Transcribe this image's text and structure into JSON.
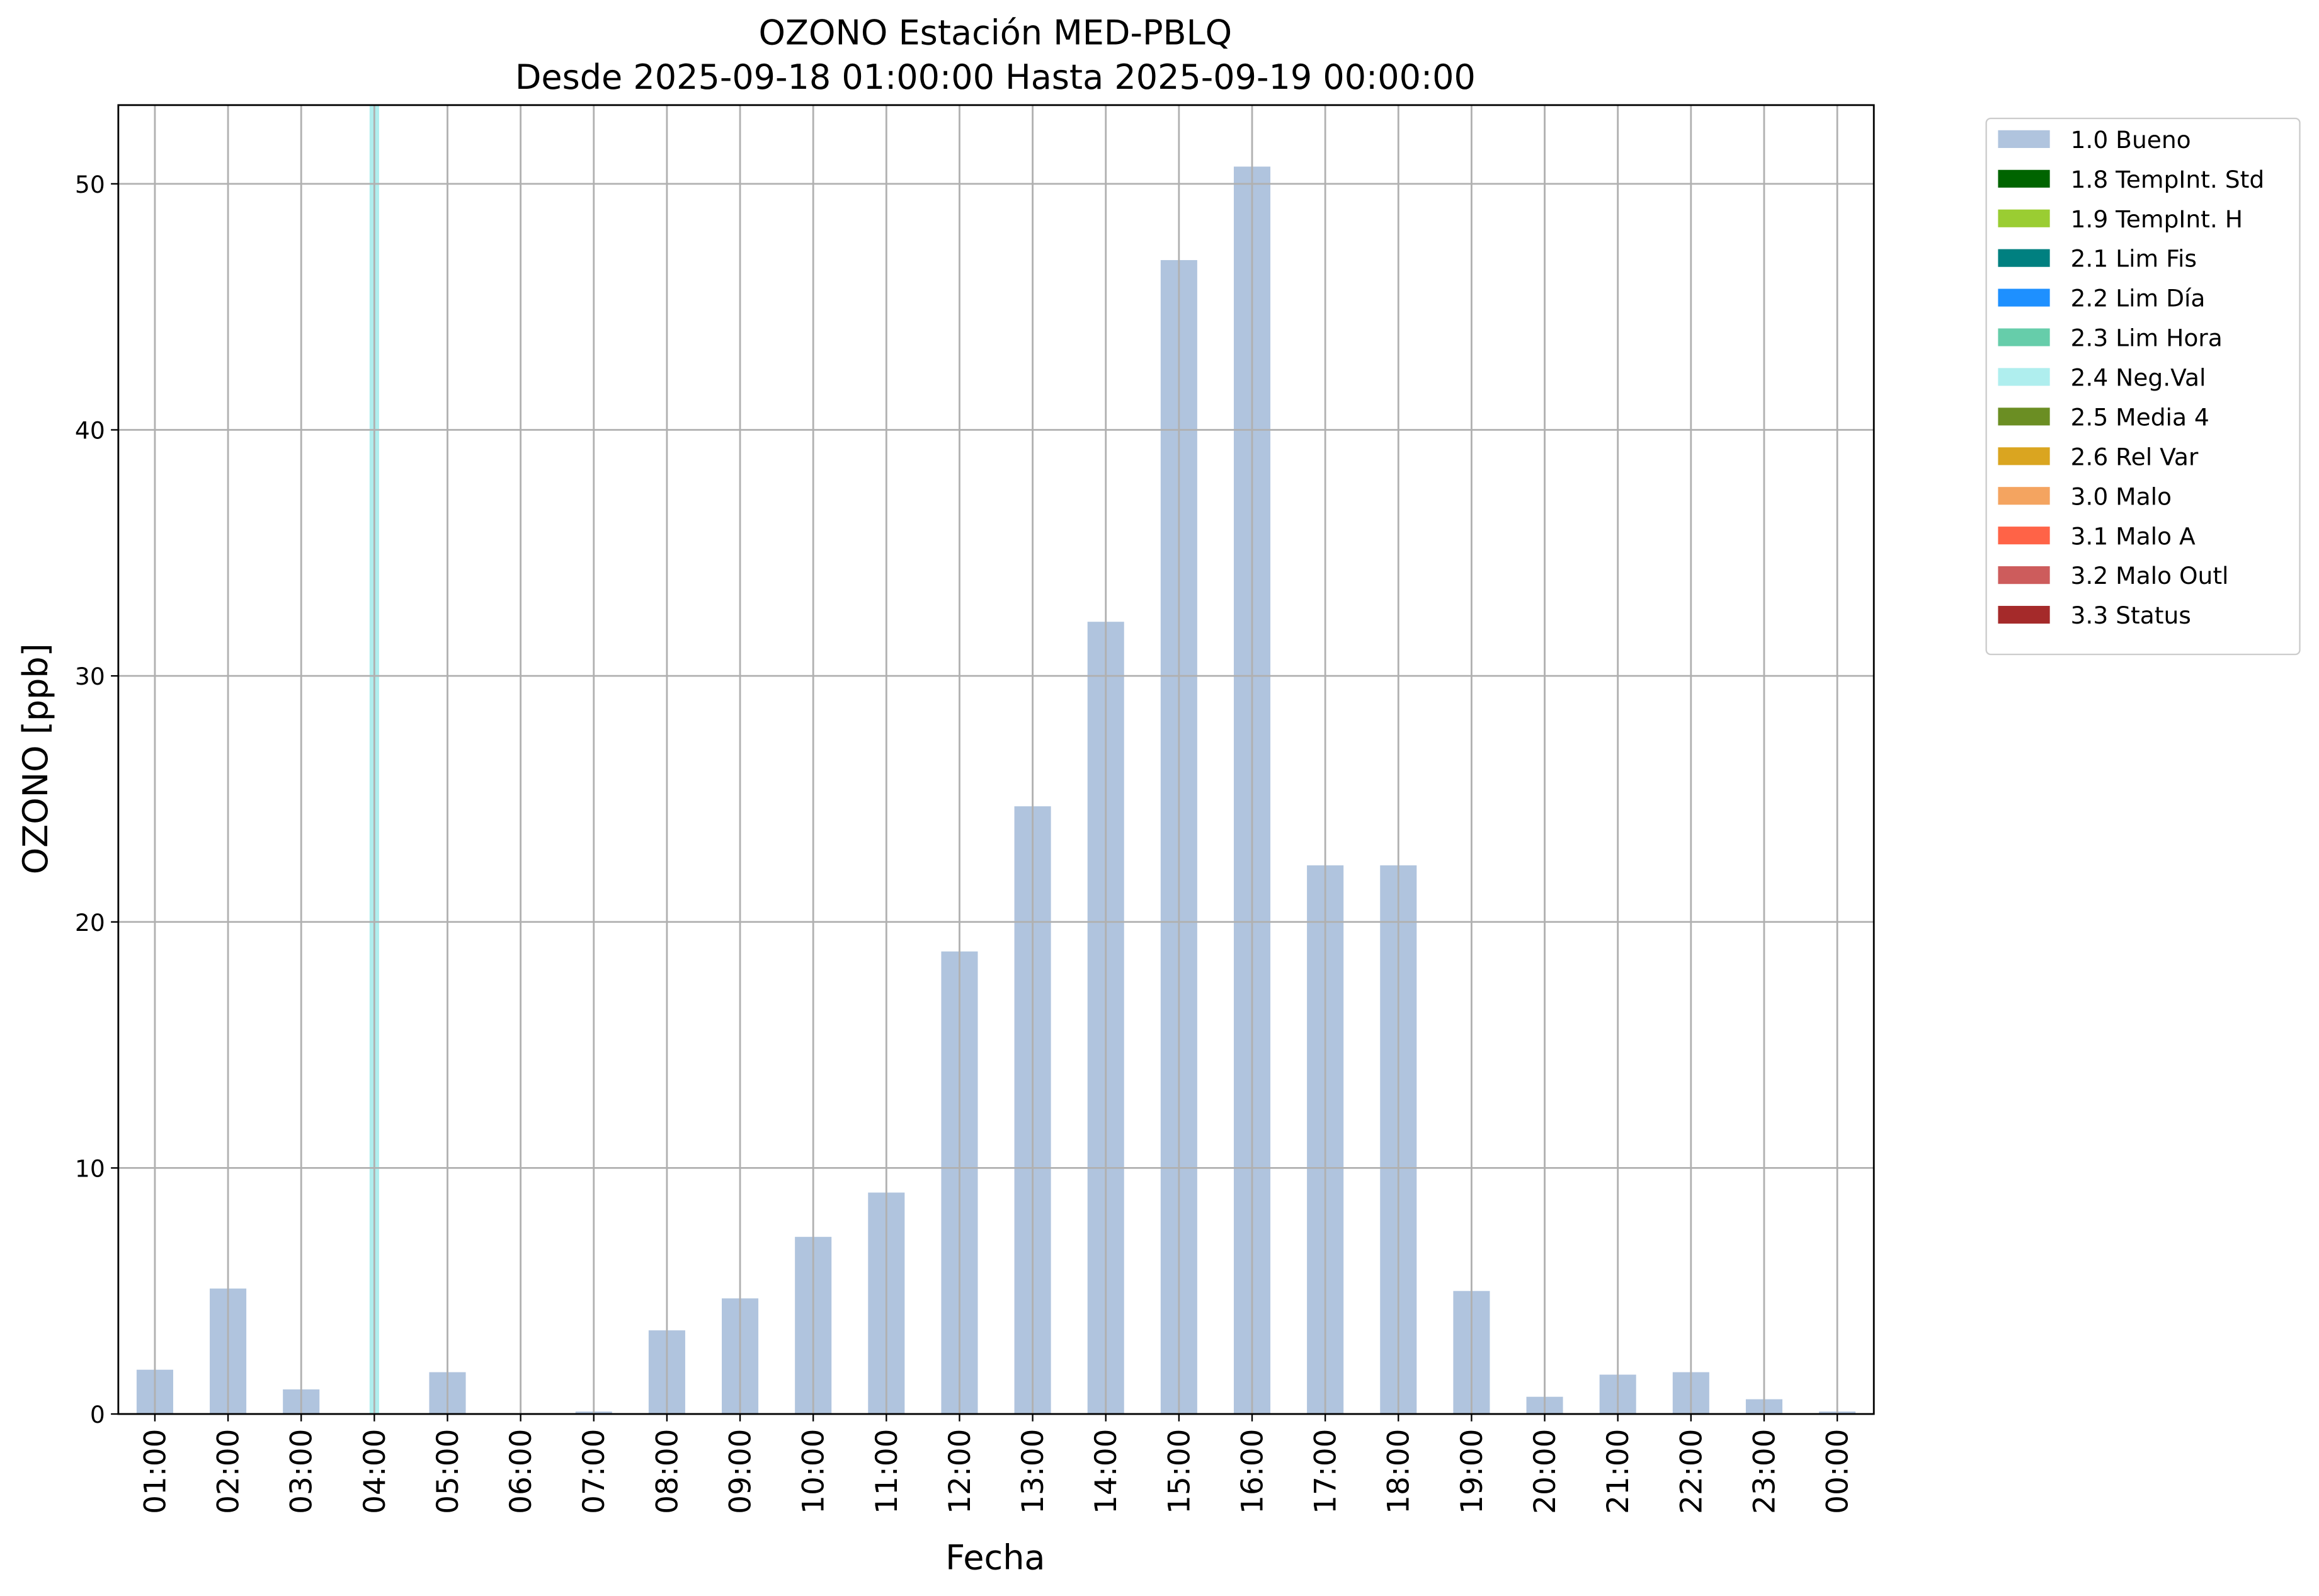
{
  "chart_data": {
    "type": "bar",
    "title": "OZONO Estación MED-PBLQ",
    "subtitle": "Desde 2025-09-18 01:00:00 Hasta 2025-09-19 00:00:00",
    "x_label": "Fecha",
    "y_label": "OZONO [ppb]",
    "categories": [
      "01:00",
      "02:00",
      "03:00",
      "04:00",
      "05:00",
      "06:00",
      "07:00",
      "08:00",
      "09:00",
      "10:00",
      "11:00",
      "12:00",
      "13:00",
      "14:00",
      "15:00",
      "16:00",
      "17:00",
      "18:00",
      "19:00",
      "20:00",
      "21:00",
      "22:00",
      "23:00",
      "00:00"
    ],
    "series": [
      {
        "name": "1.0 Bueno",
        "color": "#b0c4de",
        "values": [
          1.8,
          5.1,
          1.0,
          null,
          1.7,
          0,
          0.1,
          3.4,
          4.7,
          7.2,
          9.0,
          18.8,
          24.7,
          32.2,
          46.9,
          50.7,
          22.3,
          22.3,
          5.0,
          0.7,
          1.6,
          1.7,
          0.6,
          0.1
        ]
      },
      {
        "name": "1.8 TempInt. Std",
        "color": "#006400"
      },
      {
        "name": "1.9 TempInt. H",
        "color": "#9acd32"
      },
      {
        "name": "2.1 Lim Fis",
        "color": "#008080"
      },
      {
        "name": "2.2 Lim Día",
        "color": "#1e90ff"
      },
      {
        "name": "2.3 Lim Hora",
        "color": "#66cdaa"
      },
      {
        "name": "2.4 Neg.Val",
        "color": "#afeeee",
        "spans": [
          "04:00"
        ]
      },
      {
        "name": "2.5 Media 4",
        "color": "#6b8e23"
      },
      {
        "name": "2.6 Rel Var",
        "color": "#daa520"
      },
      {
        "name": "3.0 Malo",
        "color": "#f4a460"
      },
      {
        "name": "3.1 Malo A",
        "color": "#ff6347"
      },
      {
        "name": "3.2 Malo Outl",
        "color": "#cd5c5c"
      },
      {
        "name": "3.3 Status",
        "color": "#a52a2a"
      }
    ],
    "ylim": [
      0,
      53.2
    ],
    "yticks": [
      0,
      10,
      20,
      30,
      40,
      50
    ],
    "grid": true,
    "legend": "outside-upper-right"
  }
}
